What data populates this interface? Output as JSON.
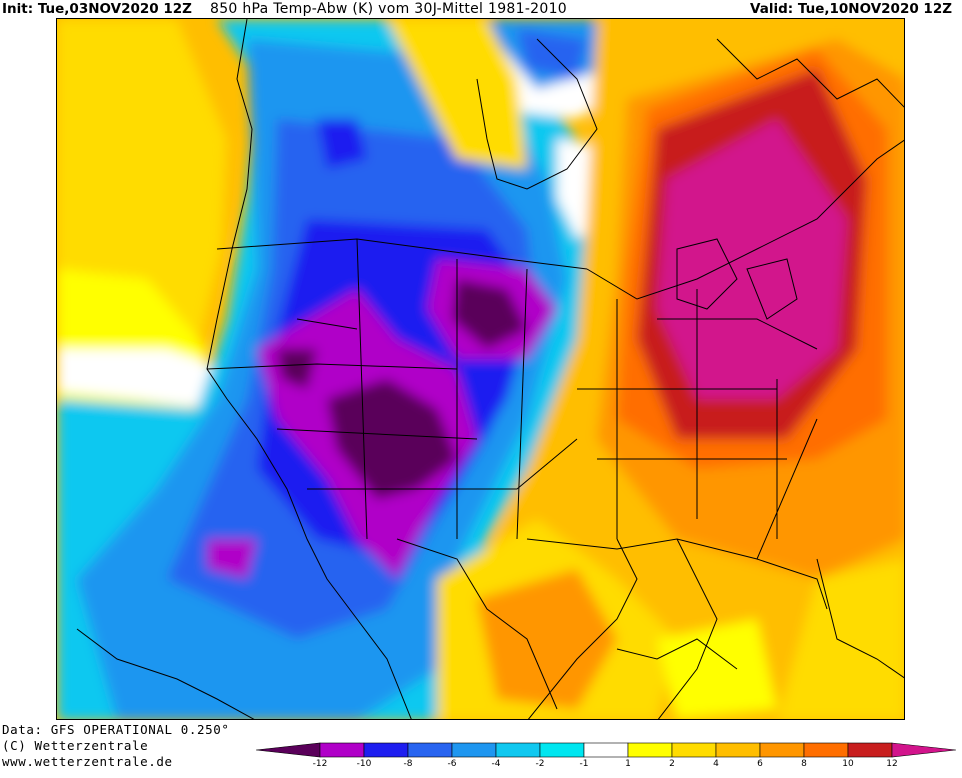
{
  "header": {
    "init": "Init: Tue,03NOV2020 12Z",
    "title": "850 hPa Temp-Abw (K) vom 30J-Mittel 1981-2010",
    "valid": "Valid: Tue,10NOV2020 12Z"
  },
  "footer": {
    "data_line": "Data: GFS OPERATIONAL 0.250°",
    "copyright": "(C) Wetterzentrale",
    "url": "www.wetterzentrale.de"
  },
  "legend": {
    "colors": [
      "#5a005a",
      "#b000c8",
      "#1e1ef0",
      "#2864f0",
      "#1e96f0",
      "#10c8f0",
      "#00e6f0",
      "#ffffff",
      "#ffff00",
      "#ffdc00",
      "#ffbe00",
      "#ff9600",
      "#ff6e00",
      "#c81e1e",
      "#d2148c"
    ],
    "tick_labels": [
      "-12",
      "-10",
      "-8",
      "-6",
      "-4",
      "-2",
      "-1",
      "1",
      "2",
      "4",
      "6",
      "8",
      "10",
      "12"
    ]
  }
}
